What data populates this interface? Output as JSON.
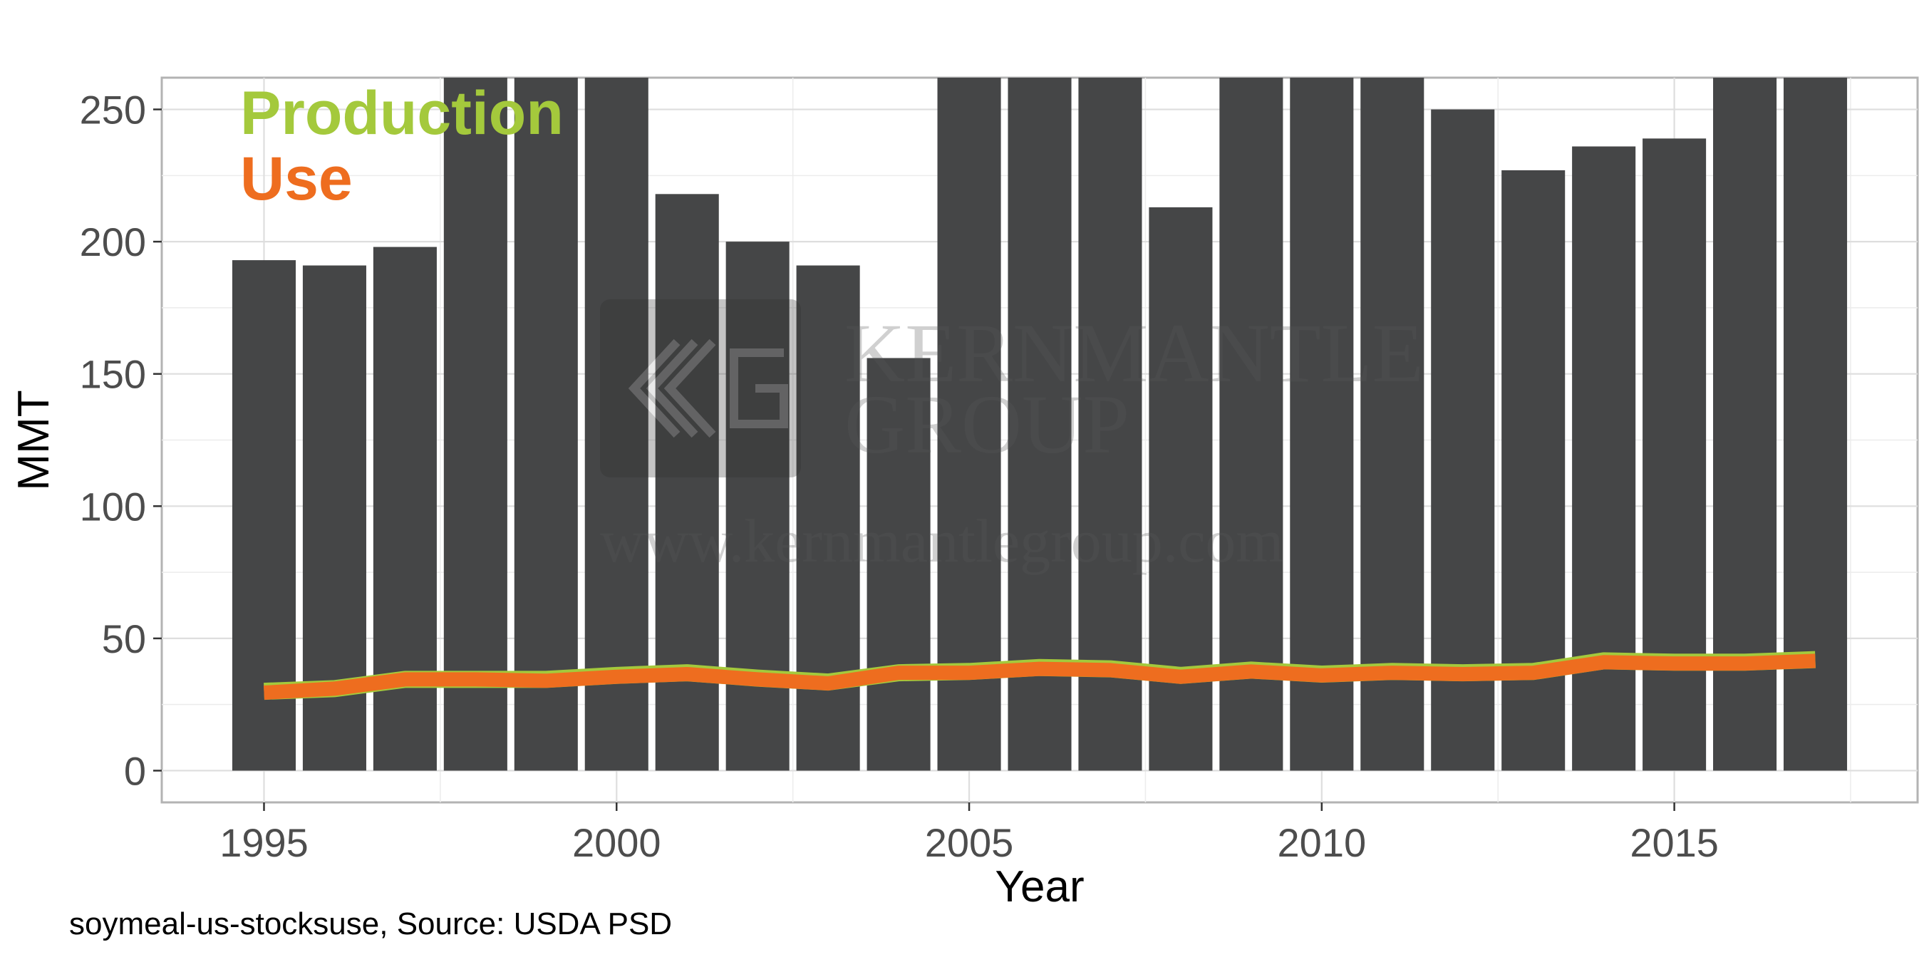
{
  "chart_data": {
    "type": "bar",
    "xlabel": "Year",
    "ylabel": "MMT",
    "xlim": [
      1993.55,
      2018.45
    ],
    "ylim": [
      -12,
      262
    ],
    "x_ticks": [
      1995,
      2000,
      2005,
      2010,
      2015
    ],
    "y_ticks": [
      0,
      50,
      100,
      150,
      200,
      250
    ],
    "grid": true,
    "legend_position": "top-left",
    "bars": {
      "color": "#454647",
      "years": [
        1995,
        1996,
        1997,
        1998,
        1999,
        2000,
        2001,
        2002,
        2003,
        2004,
        2005,
        2006,
        2007,
        2008,
        2009,
        2010,
        2011,
        2012,
        2013,
        2014,
        2015,
        2016,
        2017
      ],
      "values": [
        193,
        191,
        198,
        262,
        262,
        262,
        218,
        200,
        191,
        156,
        262,
        262,
        262,
        213,
        262,
        262,
        262,
        250,
        227,
        236,
        239,
        262,
        262
      ]
    },
    "series": [
      {
        "name": "Production",
        "color": "#a4c93c",
        "x": [
          1995,
          1996,
          1997,
          1998,
          1999,
          2000,
          2001,
          2002,
          2003,
          2004,
          2005,
          2006,
          2007,
          2008,
          2009,
          2010,
          2011,
          2012,
          2013,
          2014,
          2015,
          2016,
          2017
        ],
        "values": [
          30,
          31,
          34.5,
          34.5,
          34.5,
          36,
          37,
          35,
          33.5,
          37,
          37.5,
          39,
          38.5,
          36,
          38,
          36.5,
          37.5,
          37,
          37.5,
          41.5,
          41,
          41,
          42
        ]
      },
      {
        "name": "Use",
        "color": "#ee6d1f",
        "x": [
          1995,
          1996,
          1997,
          1998,
          1999,
          2000,
          2001,
          2002,
          2003,
          2004,
          2005,
          2006,
          2007,
          2008,
          2009,
          2010,
          2011,
          2012,
          2013,
          2014,
          2015,
          2016,
          2017
        ],
        "values": [
          29.5,
          31,
          34.5,
          34.5,
          34,
          35.5,
          36.5,
          34.5,
          33,
          37,
          37,
          38.5,
          38,
          35.5,
          37.5,
          36,
          37,
          36.5,
          37,
          41,
          40.5,
          40.5,
          41.5
        ]
      }
    ]
  },
  "caption": "soymeal-us-stocksuse, Source: USDA PSD",
  "watermark": {
    "line1": "KERNMANTLE",
    "line2": "GROUP",
    "url": "www.kernmantlegroup.com"
  }
}
